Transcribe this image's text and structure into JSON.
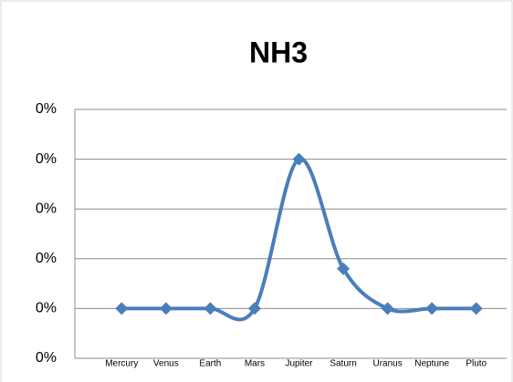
{
  "chart_data": {
    "type": "line",
    "title": "NH3",
    "categories": [
      "Mercury",
      "Venus",
      "Earth",
      "Mars",
      "Jupiter",
      "Saturn",
      "Uranus",
      "Neptune",
      "Pluto"
    ],
    "series": [
      {
        "name": "NH3",
        "color": "#4a7ebb",
        "values": [
          0.1,
          0.1,
          0.1,
          0.1,
          0.4,
          0.18,
          0.1,
          0.1,
          0.1
        ]
      }
    ],
    "ylim": [
      0,
      0.5
    ],
    "yticks": [
      {
        "value": 0,
        "label": "0%"
      },
      {
        "value": 0.1,
        "label": "0%"
      },
      {
        "value": 0.2,
        "label": "0%"
      },
      {
        "value": 0.3,
        "label": "0%"
      },
      {
        "value": 0.4,
        "label": "0%"
      },
      {
        "value": 0.5,
        "label": "0%"
      }
    ],
    "grid": true
  }
}
